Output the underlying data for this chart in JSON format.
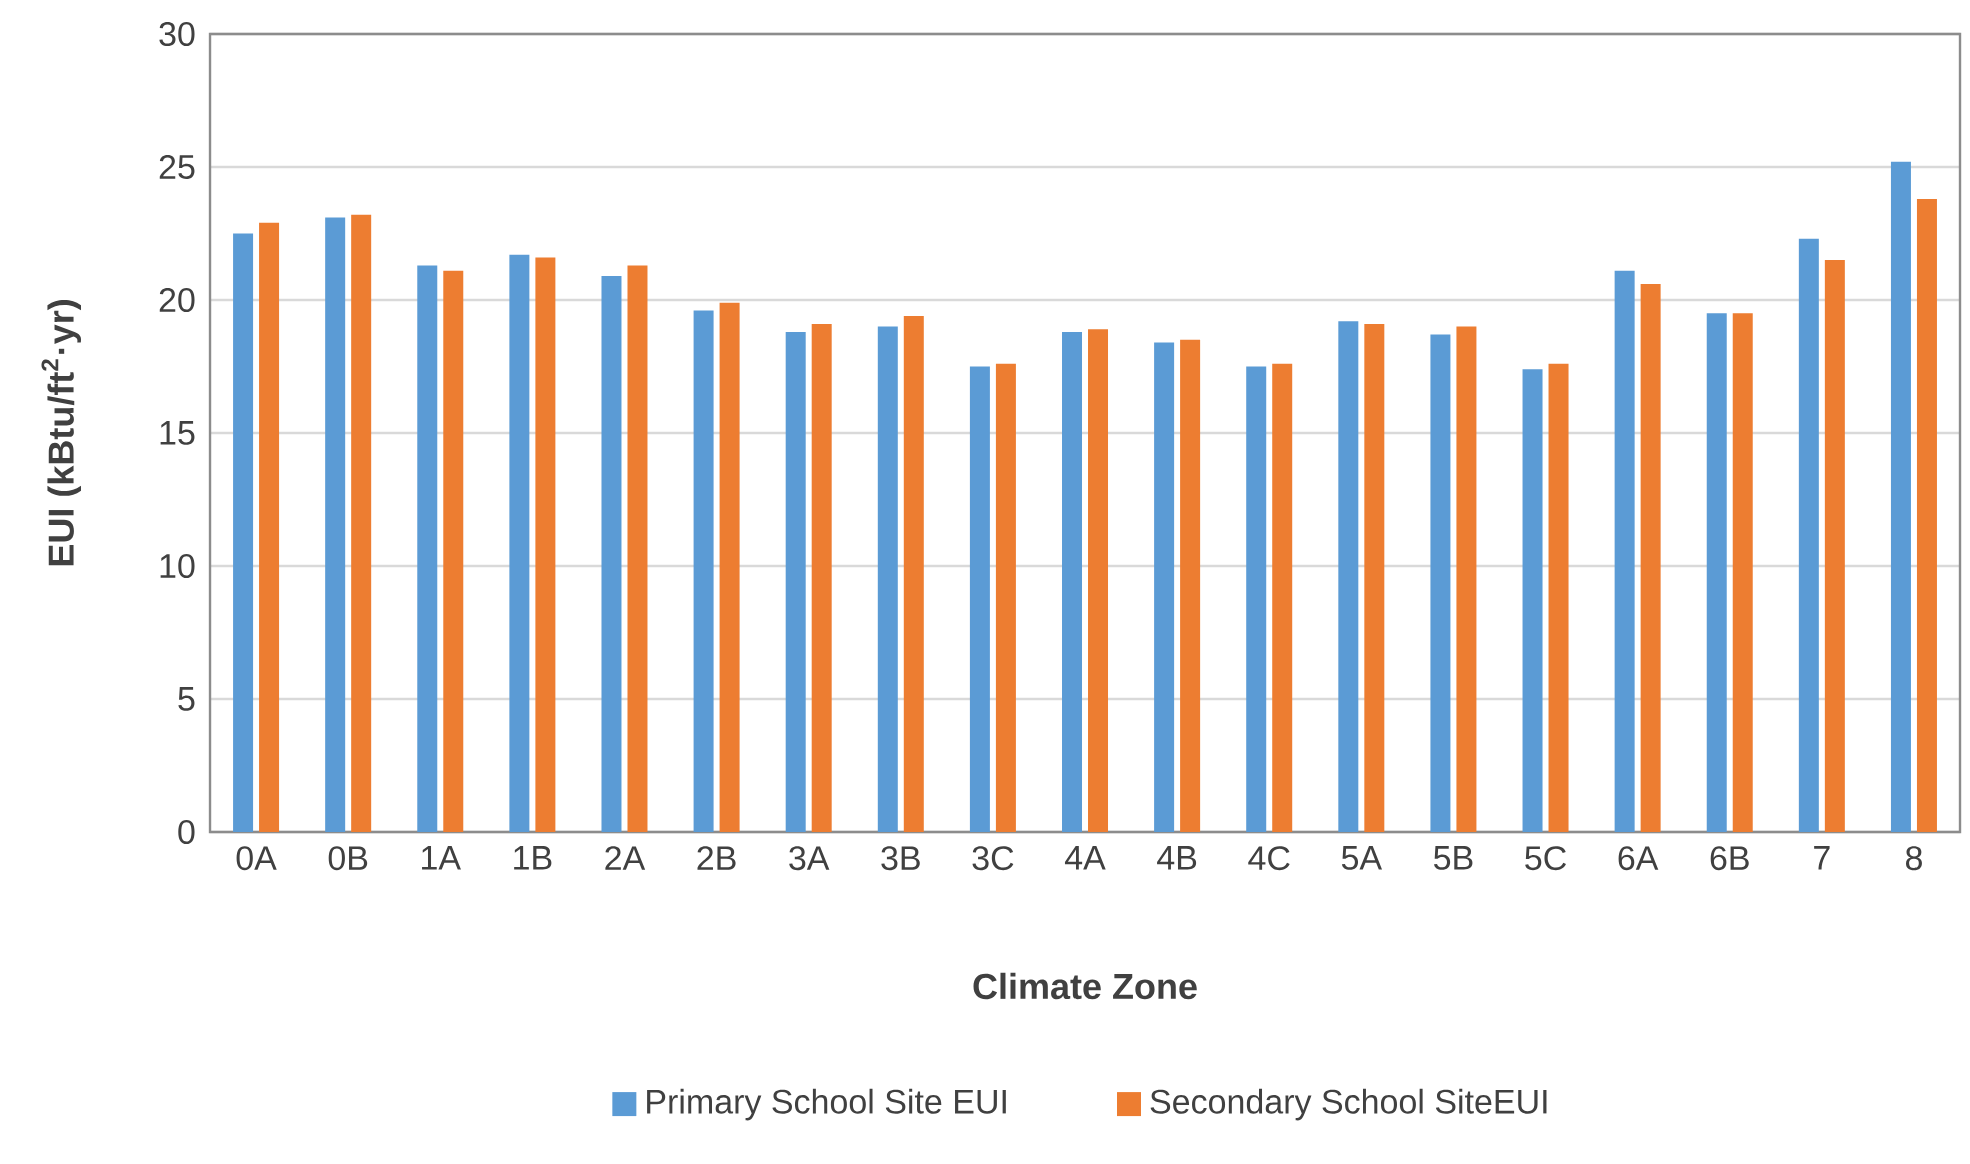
{
  "chart_data": {
    "type": "bar",
    "xlabel": "Climate Zone",
    "ylabel": "EUI (kBtu/ft$^{2}$·yr)",
    "categories": [
      "0A",
      "0B",
      "1A",
      "1B",
      "2A",
      "2B",
      "3A",
      "3B",
      "3C",
      "4A",
      "4B",
      "4C",
      "5A",
      "5B",
      "5C",
      "6A",
      "6B",
      "7",
      "8"
    ],
    "series": [
      {
        "name": "Primary School Site EUI",
        "color": "#5b9bd5",
        "values": [
          22.5,
          23.1,
          21.3,
          21.7,
          20.9,
          19.6,
          18.8,
          19.0,
          17.5,
          18.8,
          18.4,
          17.5,
          19.2,
          18.7,
          17.4,
          21.1,
          19.5,
          22.3,
          25.2
        ]
      },
      {
        "name": "Secondary School SiteEUI",
        "color": "#ed7d31",
        "values": [
          22.9,
          23.2,
          21.1,
          21.6,
          21.3,
          19.9,
          19.1,
          19.4,
          17.6,
          18.9,
          18.5,
          17.6,
          19.1,
          19.0,
          17.6,
          20.6,
          19.5,
          21.5,
          23.8
        ]
      }
    ],
    "ylim": [
      0,
      30
    ],
    "yticks": [
      0,
      5,
      10,
      15,
      20,
      25,
      30
    ],
    "grid": "y",
    "legend": "bottom"
  }
}
